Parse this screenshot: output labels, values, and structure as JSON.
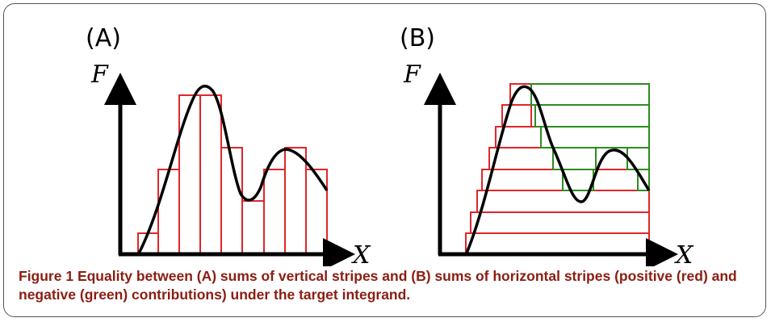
{
  "panel_a": {
    "label": "(A)",
    "y_axis": "F",
    "x_axis": "X"
  },
  "panel_b": {
    "label": "(B)",
    "y_axis": "F",
    "x_axis": "X"
  },
  "colors": {
    "curve": "#000000",
    "positive_stripe": "#e0262b",
    "negative_stripe": "#2e8b20",
    "caption_text": "#8b1d12"
  },
  "caption": {
    "figure_number": "Figure 1",
    "text": " Equality between (A) sums of vertical stripes and (B) sums of horizontal stripes (positive (red) and negative (green) contributions) under the target integrand."
  }
}
